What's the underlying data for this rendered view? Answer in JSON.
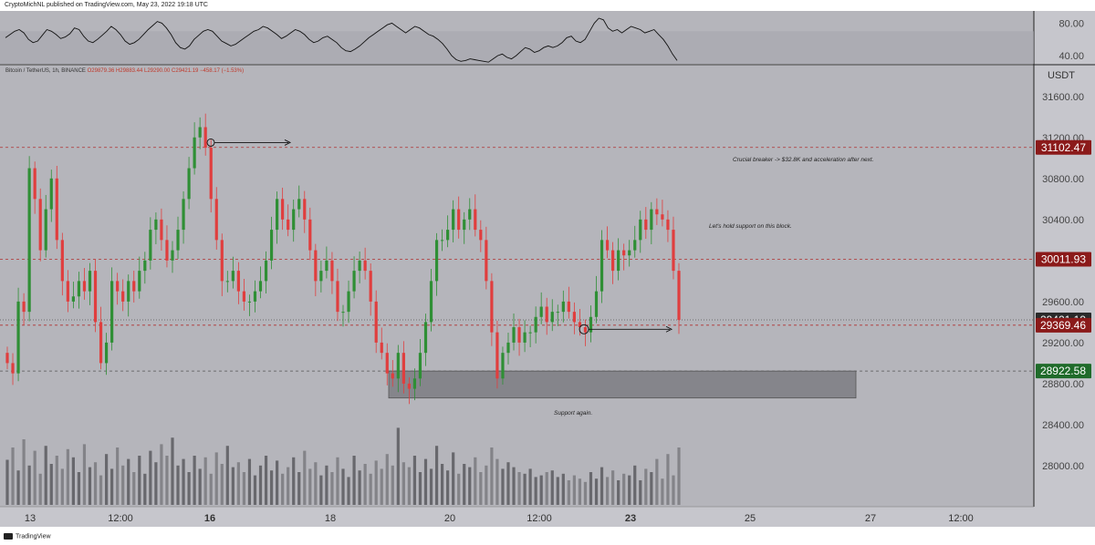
{
  "header": {
    "publisher_line": "CryptoMichNL published on TradingView.com, May 23, 2022 19:18 UTC"
  },
  "symbol_bar": {
    "name": "Bitcoin / TetherUS, 1h, BINANCE",
    "ohlc": "O29879.36 H29883.44 L29290.00 C29421.19 −458.17 (−1.53%)"
  },
  "footer": {
    "brand": "TradingView"
  },
  "colors": {
    "background": "#b5b5bb",
    "bull": "#2f8f35",
    "bear": "#e03e3e",
    "level_red": "#8b1a1a",
    "level_green": "#1f6b2a",
    "current": "#333333",
    "support_box": "#7d7d83"
  },
  "chart_data": [
    {
      "panel": "oscillator",
      "type": "line",
      "ylim": [
        30,
        95
      ],
      "tick_labels": [
        "80.00",
        "40.00"
      ],
      "values": [
        62,
        66,
        70,
        72,
        68,
        60,
        56,
        58,
        65,
        72,
        70,
        66,
        61,
        63,
        67,
        74,
        72,
        64,
        58,
        56,
        60,
        65,
        70,
        76,
        72,
        66,
        58,
        54,
        56,
        60,
        66,
        72,
        77,
        82,
        80,
        74,
        66,
        56,
        50,
        48,
        52,
        60,
        65,
        70,
        72,
        70,
        64,
        58,
        55,
        52,
        54,
        58,
        62,
        66,
        70,
        72,
        76,
        74,
        70,
        66,
        61,
        64,
        68,
        72,
        70,
        66,
        60,
        56,
        58,
        62,
        64,
        60,
        56,
        50,
        46,
        45,
        48,
        52,
        57,
        62,
        66,
        70,
        74,
        78,
        80,
        76,
        72,
        68,
        72,
        76,
        74,
        70,
        66,
        64,
        60,
        55,
        48,
        40,
        35,
        33,
        34,
        36,
        35,
        34,
        33,
        32,
        36,
        40,
        42,
        38,
        36,
        40,
        45,
        50,
        48,
        44,
        46,
        50,
        52,
        50,
        52,
        56,
        62,
        64,
        58,
        56,
        60,
        70,
        80,
        86,
        84,
        74,
        70,
        72,
        68,
        72,
        76,
        74,
        72,
        68,
        70,
        72,
        66,
        60,
        52,
        42,
        34
      ]
    },
    {
      "panel": "price",
      "type": "candlestick",
      "title": "Bitcoin / TetherUS, 1h, BINANCE",
      "unit": "USDT",
      "ylim": [
        27600,
        31900
      ],
      "y_ticks": [
        28000,
        28400,
        28800,
        29200,
        29600,
        30000,
        30400,
        30800,
        31200,
        31600
      ],
      "x_tick_labels": [
        "13",
        "12:00",
        "16",
        "18",
        "20",
        "12:00",
        "23",
        "25",
        "27",
        "12:00"
      ],
      "closes": [
        29000,
        28900,
        29600,
        29500,
        30900,
        30600,
        30100,
        30500,
        30800,
        30200,
        29800,
        29600,
        29650,
        29800,
        29700,
        29900,
        29400,
        29000,
        29200,
        29800,
        29700,
        29600,
        29800,
        29700,
        29900,
        30000,
        30300,
        30400,
        30200,
        30000,
        30100,
        30300,
        30600,
        30900,
        31200,
        31300,
        31100,
        30600,
        30200,
        29800,
        29800,
        29900,
        29700,
        29600,
        29600,
        29700,
        29800,
        30000,
        30300,
        30600,
        30400,
        30300,
        30500,
        30600,
        30400,
        30100,
        29800,
        29900,
        30000,
        29800,
        29500,
        29500,
        29700,
        29900,
        30000,
        29900,
        29600,
        29200,
        29100,
        28900,
        28850,
        29100,
        28800,
        28750,
        28850,
        29100,
        29400,
        29800,
        30200,
        30200,
        30300,
        30500,
        30300,
        30400,
        30500,
        30300,
        30200,
        29800,
        29300,
        28850,
        29100,
        29200,
        29350,
        29200,
        29300,
        29300,
        29450,
        29550,
        29400,
        29500,
        29500,
        29600,
        29500,
        29400,
        29350,
        29300,
        29450,
        29700,
        30200,
        30100,
        29900,
        30100,
        30050,
        30100,
        30200,
        30400,
        30300,
        30500,
        30450,
        30400,
        30300,
        29900,
        29421
      ],
      "volumes": [
        55,
        70,
        42,
        80,
        48,
        66,
        38,
        72,
        50,
        60,
        44,
        68,
        58,
        40,
        74,
        46,
        52,
        36,
        62,
        44,
        70,
        48,
        56,
        40,
        60,
        38,
        66,
        52,
        74,
        60,
        82,
        48,
        56,
        40,
        60,
        44,
        58,
        38,
        64,
        50,
        72,
        46,
        52,
        40,
        56,
        36,
        48,
        60,
        42,
        54,
        38,
        46,
        58,
        40,
        66,
        44,
        52,
        36,
        48,
        40,
        58,
        44,
        34,
        60,
        42,
        50,
        38,
        54,
        44,
        62,
        48,
        94,
        52,
        46,
        60,
        40,
        56,
        44,
        72,
        50,
        42,
        64,
        38,
        50,
        46,
        58,
        40,
        48,
        70,
        56,
        44,
        52,
        46,
        40,
        38,
        44,
        34,
        36,
        40,
        42,
        34,
        38,
        30,
        36,
        32,
        28,
        40,
        32,
        46,
        34,
        42,
        30,
        38,
        36,
        48,
        30,
        44,
        40,
        56,
        32,
        62,
        36,
        70
      ],
      "levels": [
        {
          "value": 31102.47,
          "label": "31102.47",
          "kind": "resistance"
        },
        {
          "value": 30011.93,
          "label": "30011.93",
          "kind": "resistance"
        },
        {
          "value": 29421.19,
          "label": "29421.19",
          "kind": "current"
        },
        {
          "value": 29369.46,
          "label": "29369.46",
          "kind": "resistance"
        },
        {
          "value": 28922.58,
          "label": "28922.58",
          "kind": "support"
        }
      ],
      "support_zone": {
        "from": 28660,
        "to": 28922.58
      },
      "annotations": [
        {
          "text": "Crucial breaker -> $32.8K and acceleration after next.",
          "price": 30970
        },
        {
          "text": "Let's hold support on this block.",
          "price": 30320
        },
        {
          "text": "Support again.",
          "price": 28500
        }
      ]
    }
  ]
}
